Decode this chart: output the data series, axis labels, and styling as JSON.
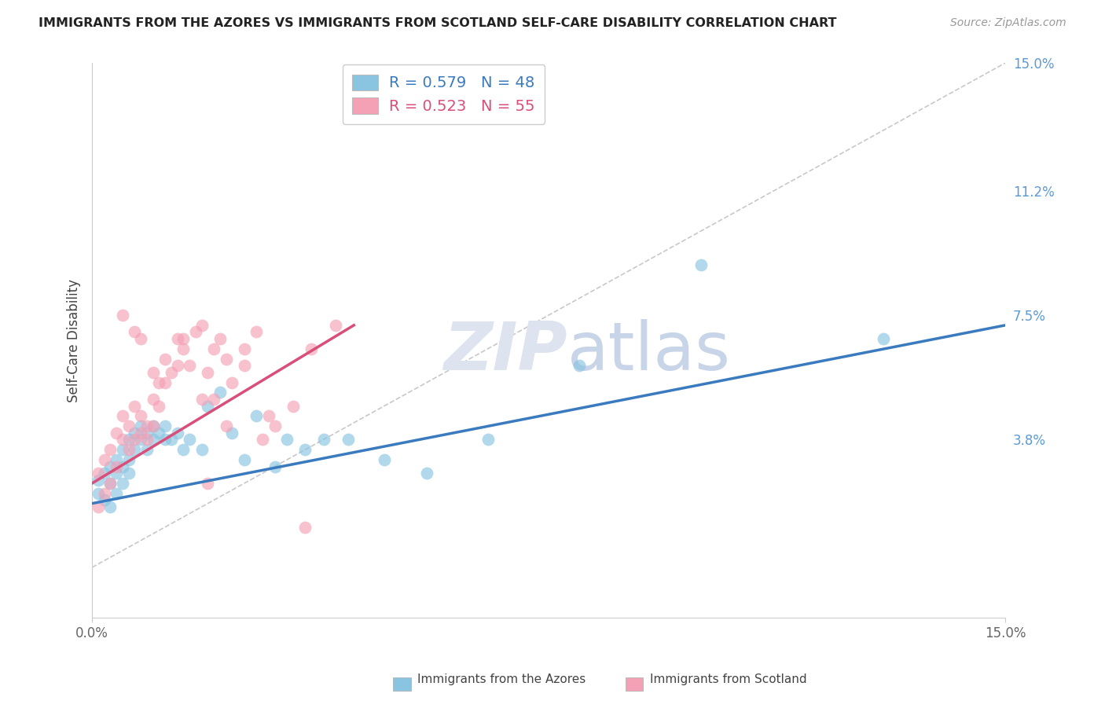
{
  "title": "IMMIGRANTS FROM THE AZORES VS IMMIGRANTS FROM SCOTLAND SELF-CARE DISABILITY CORRELATION CHART",
  "source": "Source: ZipAtlas.com",
  "ylabel": "Self-Care Disability",
  "x_min": 0.0,
  "x_max": 0.15,
  "y_min": -0.015,
  "y_max": 0.15,
  "y_tick_labels": [
    "15.0%",
    "11.2%",
    "7.5%",
    "3.8%"
  ],
  "y_tick_vals": [
    0.15,
    0.112,
    0.075,
    0.038
  ],
  "legend_label1": "Immigrants from the Azores",
  "legend_label2": "Immigrants from Scotland",
  "R1": 0.579,
  "N1": 48,
  "R2": 0.523,
  "N2": 55,
  "color_blue": "#89c4e1",
  "color_pink": "#f4a0b5",
  "line_color_blue": "#3a7abf",
  "line_color_pink": "#d94f7a",
  "right_tick_color": "#5b9bd5",
  "background_color": "#ffffff",
  "grid_color": "#e0e0e0",
  "watermark_text": "ZIPatlas",
  "azores_x": [
    0.001,
    0.001,
    0.002,
    0.002,
    0.003,
    0.003,
    0.003,
    0.004,
    0.004,
    0.004,
    0.005,
    0.005,
    0.005,
    0.006,
    0.006,
    0.006,
    0.007,
    0.007,
    0.008,
    0.008,
    0.009,
    0.009,
    0.01,
    0.01,
    0.011,
    0.012,
    0.012,
    0.013,
    0.014,
    0.015,
    0.016,
    0.018,
    0.019,
    0.021,
    0.023,
    0.025,
    0.027,
    0.03,
    0.032,
    0.035,
    0.038,
    0.042,
    0.048,
    0.055,
    0.065,
    0.08,
    0.1,
    0.13
  ],
  "azores_y": [
    0.022,
    0.026,
    0.02,
    0.028,
    0.018,
    0.025,
    0.03,
    0.022,
    0.032,
    0.028,
    0.035,
    0.03,
    0.025,
    0.038,
    0.032,
    0.028,
    0.04,
    0.035,
    0.042,
    0.038,
    0.035,
    0.04,
    0.038,
    0.042,
    0.04,
    0.038,
    0.042,
    0.038,
    0.04,
    0.035,
    0.038,
    0.035,
    0.048,
    0.052,
    0.04,
    0.032,
    0.045,
    0.03,
    0.038,
    0.035,
    0.038,
    0.038,
    0.032,
    0.028,
    0.038,
    0.06,
    0.09,
    0.068
  ],
  "scotland_x": [
    0.001,
    0.001,
    0.002,
    0.002,
    0.003,
    0.003,
    0.004,
    0.004,
    0.005,
    0.005,
    0.006,
    0.006,
    0.007,
    0.007,
    0.008,
    0.008,
    0.009,
    0.009,
    0.01,
    0.01,
    0.011,
    0.011,
    0.012,
    0.013,
    0.014,
    0.015,
    0.016,
    0.017,
    0.018,
    0.019,
    0.02,
    0.021,
    0.022,
    0.023,
    0.025,
    0.027,
    0.029,
    0.033,
    0.036,
    0.04,
    0.01,
    0.015,
    0.02,
    0.025,
    0.03,
    0.008,
    0.012,
    0.018,
    0.022,
    0.028,
    0.005,
    0.007,
    0.014,
    0.019,
    0.035
  ],
  "scotland_y": [
    0.018,
    0.028,
    0.022,
    0.032,
    0.025,
    0.035,
    0.03,
    0.04,
    0.038,
    0.045,
    0.042,
    0.035,
    0.048,
    0.038,
    0.045,
    0.04,
    0.042,
    0.038,
    0.05,
    0.042,
    0.055,
    0.048,
    0.062,
    0.058,
    0.068,
    0.065,
    0.06,
    0.07,
    0.072,
    0.058,
    0.065,
    0.068,
    0.042,
    0.055,
    0.06,
    0.07,
    0.045,
    0.048,
    0.065,
    0.072,
    0.058,
    0.068,
    0.05,
    0.065,
    0.042,
    0.068,
    0.055,
    0.05,
    0.062,
    0.038,
    0.075,
    0.07,
    0.06,
    0.025,
    0.012
  ],
  "blue_line_x": [
    0.0,
    0.15
  ],
  "blue_line_y": [
    0.019,
    0.072
  ],
  "pink_line_x": [
    0.0,
    0.043
  ],
  "pink_line_y": [
    0.025,
    0.072
  ]
}
